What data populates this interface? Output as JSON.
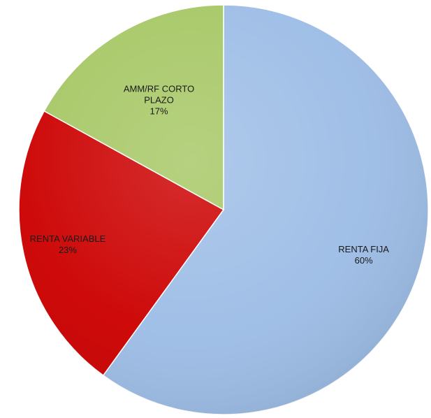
{
  "chart_data": {
    "type": "pie",
    "slices": [
      {
        "label": "RENTA FIJA",
        "value": 60,
        "display_value": "60%",
        "color": "#9dbde6",
        "label_lines": [
          "RENTA FIJA",
          "60%"
        ]
      },
      {
        "label": "RENTA VARIABLE",
        "value": 23,
        "display_value": "23%",
        "color": "#cc0000",
        "label_lines": [
          "RENTA VARIABLE",
          "23%"
        ]
      },
      {
        "label": "AMM/RF CORTO PLAZO",
        "value": 17,
        "display_value": "17%",
        "color": "#a6c764",
        "label_lines": [
          "AMM/RF CORTO",
          "PLAZO",
          "17%"
        ]
      }
    ],
    "start_angle": "12 o'clock",
    "direction": "clockwise",
    "legend": "none"
  }
}
